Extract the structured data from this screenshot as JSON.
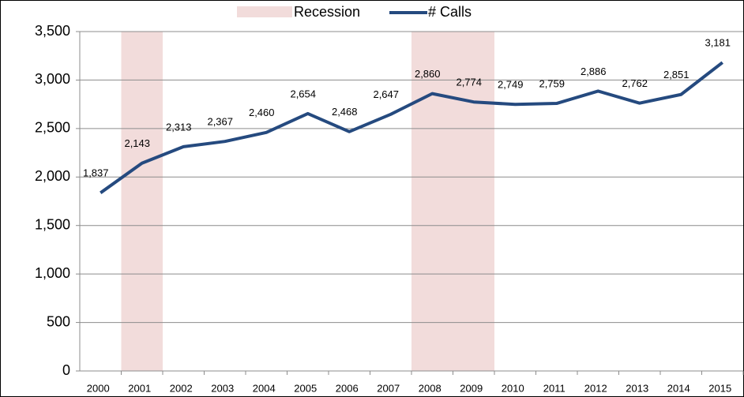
{
  "chart_data": {
    "type": "line",
    "categories": [
      "2000",
      "2001",
      "2002",
      "2003",
      "2004",
      "2005",
      "2006",
      "2007",
      "2008",
      "2009",
      "2010",
      "2011",
      "2012",
      "2013",
      "2014",
      "2015"
    ],
    "series": [
      {
        "name": "Recession",
        "type": "bar",
        "color": "#f2dcdb",
        "values": [
          0,
          3500,
          0,
          0,
          0,
          0,
          0,
          0,
          3500,
          3500,
          0,
          0,
          0,
          0,
          0,
          0
        ]
      },
      {
        "name": "# Calls",
        "type": "line",
        "color": "#254a7f",
        "values": [
          1837,
          2143,
          2313,
          2367,
          2460,
          2654,
          2468,
          2647,
          2860,
          2774,
          2749,
          2759,
          2886,
          2762,
          2851,
          3181
        ],
        "value_labels": [
          "1,837",
          "2,143",
          "2,313",
          "2,367",
          "2,460",
          "2,654",
          "2,468",
          "2,647",
          "2,860",
          "2,774",
          "2,749",
          "2,759",
          "2,886",
          "2,762",
          "2,851",
          "3,181"
        ]
      }
    ],
    "ylim": [
      0,
      3500
    ],
    "yticks": [
      0,
      500,
      {
        "value": 1000,
        "label": "1,000"
      },
      {
        "value": 1500,
        "label": "1,500"
      },
      {
        "value": 2000,
        "label": "2,000"
      },
      {
        "value": 2500,
        "label": "2,500"
      },
      {
        "value": 3000,
        "label": "3,000"
      },
      {
        "value": 3500,
        "label": "3,500"
      }
    ],
    "grid": true,
    "legend": "top"
  }
}
